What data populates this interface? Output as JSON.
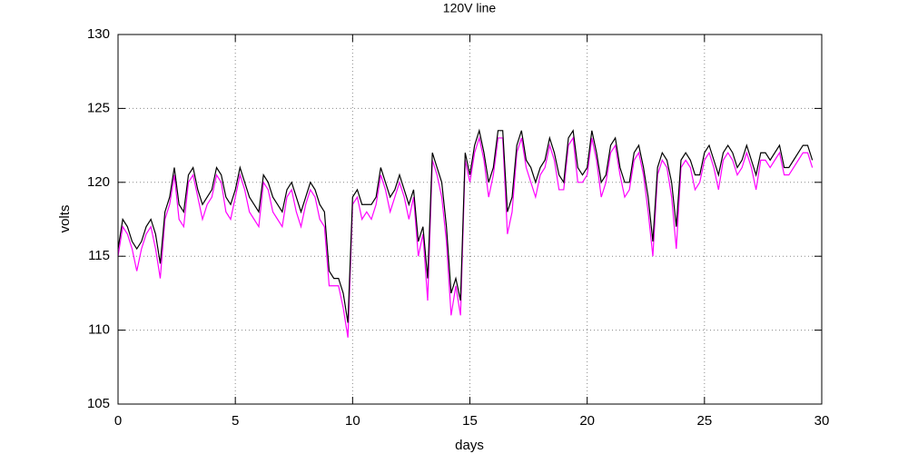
{
  "chart_data": {
    "type": "line",
    "title": "120V line",
    "xlabel": "days",
    "ylabel": "volts",
    "xlim": [
      0,
      30
    ],
    "xticks": [
      0,
      5,
      10,
      15,
      20,
      25,
      30
    ],
    "ylim": [
      105,
      130
    ],
    "yticks": [
      105,
      110,
      115,
      120,
      125,
      130
    ],
    "grid": true,
    "x": [
      0,
      0.2,
      0.4,
      0.6,
      0.8,
      1,
      1.2,
      1.4,
      1.6,
      1.8,
      2,
      2.2,
      2.4,
      2.6,
      2.8,
      3,
      3.2,
      3.4,
      3.6,
      3.8,
      4,
      4.2,
      4.4,
      4.6,
      4.8,
      5,
      5.2,
      5.4,
      5.6,
      5.8,
      6,
      6.2,
      6.4,
      6.6,
      6.8,
      7,
      7.2,
      7.4,
      7.6,
      7.8,
      8,
      8.2,
      8.4,
      8.6,
      8.8,
      9,
      9.2,
      9.4,
      9.6,
      9.8,
      10,
      10.2,
      10.4,
      10.6,
      10.8,
      11,
      11.2,
      11.4,
      11.6,
      11.8,
      12,
      12.2,
      12.4,
      12.6,
      12.8,
      13,
      13.2,
      13.4,
      13.6,
      13.8,
      14,
      14.2,
      14.4,
      14.6,
      14.8,
      15,
      15.2,
      15.4,
      15.6,
      15.8,
      16,
      16.2,
      16.4,
      16.6,
      16.8,
      17,
      17.2,
      17.4,
      17.6,
      17.8,
      18,
      18.2,
      18.4,
      18.6,
      18.8,
      19,
      19.2,
      19.4,
      19.6,
      19.8,
      20,
      20.2,
      20.4,
      20.6,
      20.8,
      21,
      21.2,
      21.4,
      21.6,
      21.8,
      22,
      22.2,
      22.4,
      22.6,
      22.8,
      23,
      23.2,
      23.4,
      23.6,
      23.8,
      24,
      24.2,
      24.4,
      24.6,
      24.8,
      25,
      25.2,
      25.4,
      25.6,
      25.8,
      26,
      26.2,
      26.4,
      26.6,
      26.8,
      27,
      27.2,
      27.4,
      27.6,
      27.8,
      28,
      28.2,
      28.4,
      28.6,
      28.8,
      29,
      29.2,
      29.4,
      29.6
    ],
    "series": [
      {
        "color": "#ff00ff",
        "values": [
          115,
          117,
          116.5,
          115.5,
          114,
          115.5,
          116.5,
          117,
          115.5,
          113.5,
          117.5,
          118.5,
          120.5,
          117.5,
          117,
          120,
          120.5,
          119,
          117.5,
          118.5,
          119,
          120.5,
          120,
          118,
          117.5,
          119,
          120.5,
          119.5,
          118,
          117.5,
          117,
          120,
          119.5,
          118,
          117.5,
          117,
          119,
          119.5,
          118,
          117,
          118.5,
          119.5,
          119,
          117.5,
          117,
          113,
          113,
          113,
          111.5,
          109.5,
          118.5,
          119,
          117.5,
          118,
          117.5,
          118.5,
          120.5,
          119.5,
          118,
          119,
          120,
          119,
          117.5,
          119,
          115,
          116.5,
          112,
          121.5,
          120.5,
          119,
          116,
          111,
          113,
          111,
          121.5,
          120,
          122,
          123,
          121.5,
          119,
          120.5,
          123,
          123,
          116.5,
          118,
          122,
          123,
          121,
          120,
          119,
          120.5,
          121,
          122.5,
          121.5,
          119.5,
          119.5,
          122.5,
          123,
          120,
          120,
          120.5,
          123,
          121.5,
          119,
          120,
          122,
          122.5,
          120.5,
          119,
          119.5,
          121.5,
          122,
          120.5,
          118,
          115,
          120.5,
          121.5,
          121,
          119,
          115.5,
          121,
          121.5,
          121,
          119.5,
          120,
          121.5,
          122,
          121,
          119.5,
          121.5,
          122,
          121.5,
          120.5,
          121,
          122,
          121,
          119.5,
          121.5,
          121.5,
          121,
          121.5,
          122,
          120.5,
          120.5,
          121,
          121.5,
          122,
          122,
          121
        ]
      },
      {
        "color": "#000000",
        "values": [
          115.5,
          117.5,
          117,
          116,
          115.5,
          116,
          117,
          117.5,
          116.5,
          114.5,
          118,
          119,
          121,
          118.5,
          118,
          120.5,
          121,
          119.5,
          118.5,
          119,
          119.5,
          121,
          120.5,
          119,
          118.5,
          119.5,
          121,
          120,
          119,
          118.5,
          118,
          120.5,
          120,
          119,
          118.5,
          118,
          119.5,
          120,
          119,
          118,
          119,
          120,
          119.5,
          118.5,
          118,
          114,
          113.5,
          113.5,
          112.5,
          110.5,
          119,
          119.5,
          118.5,
          118.5,
          118.5,
          119,
          121,
          120,
          119,
          119.5,
          120.5,
          119.5,
          118.5,
          119.5,
          116,
          117,
          113.5,
          122,
          121,
          120,
          117,
          112.5,
          113.5,
          112,
          122,
          120.5,
          122.5,
          123.5,
          122,
          120,
          121,
          123.5,
          123.5,
          118,
          119,
          122.5,
          123.5,
          121.5,
          121,
          120,
          121,
          121.5,
          123,
          122,
          120.5,
          120,
          123,
          123.5,
          121,
          120.5,
          121,
          123.5,
          122,
          120,
          120.5,
          122.5,
          123,
          121,
          120,
          120,
          122,
          122.5,
          121,
          119,
          116,
          121,
          122,
          121.5,
          120,
          117,
          121.5,
          122,
          121.5,
          120.5,
          120.5,
          122,
          122.5,
          121.5,
          120.5,
          122,
          122.5,
          122,
          121,
          121.5,
          122.5,
          121.5,
          120.5,
          122,
          122,
          121.5,
          122,
          122.5,
          121,
          121,
          121.5,
          122,
          122.5,
          122.5,
          121.5
        ]
      }
    ]
  }
}
